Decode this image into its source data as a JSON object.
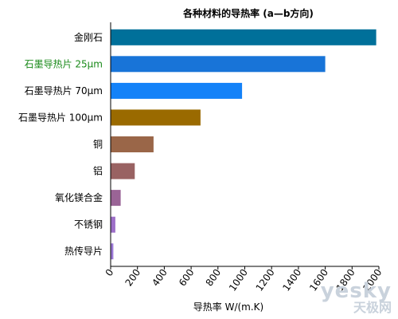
{
  "chart_data": {
    "type": "bar",
    "orientation": "horizontal",
    "title": "各种材料的导热率 (a—b方向)",
    "xlabel": "导热率 W/(m.K)",
    "ylabel": "",
    "xlim": [
      0,
      2000
    ],
    "xticks": [
      "0",
      "200",
      "400",
      "600",
      "800",
      "1000",
      "1200",
      "1400",
      "1600",
      "1800",
      "2000"
    ],
    "grid": false,
    "categories": [
      "金刚石",
      "石墨导热片 25μm",
      "石墨导热片 70μm",
      "石墨导热片 100μm",
      "铜",
      "铝",
      "氧化镁合金",
      "不锈钢",
      "热传导片"
    ],
    "values": [
      1980,
      1600,
      980,
      670,
      320,
      180,
      75,
      35,
      20
    ],
    "colors": [
      "#00709a",
      "#1874d8",
      "#1482f8",
      "#9a6a00",
      "#9a6648",
      "#996262",
      "#9a6496",
      "#9d6fc8",
      "#9b78d6"
    ],
    "highlight_label_color": "#1a8a1a",
    "highlight_index": 1
  },
  "watermark": {
    "en": "yesky",
    "cn": "天极网"
  }
}
